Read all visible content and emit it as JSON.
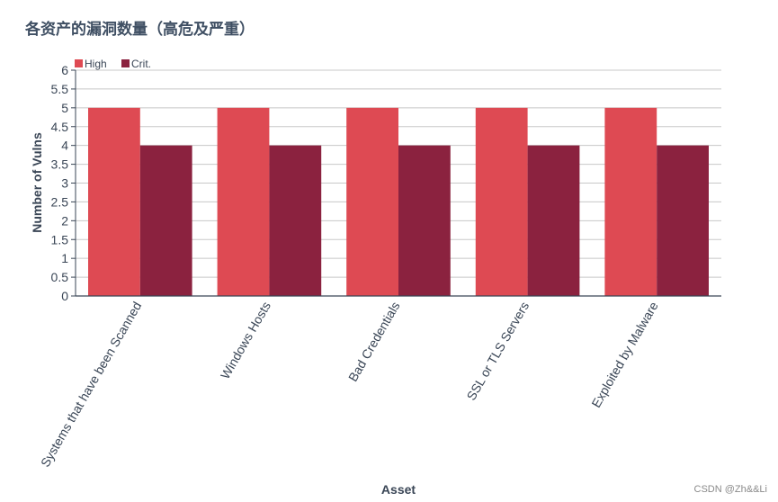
{
  "chart_data": {
    "type": "bar",
    "title": "各资产的漏洞数量（高危及严重）",
    "xlabel": "Asset",
    "ylabel": "Number of Vulns",
    "categories": [
      "Systems that have been Scanned",
      "Windows Hosts",
      "Bad Credentials",
      "SSL or TLS Servers",
      "Exploited by Malware"
    ],
    "series": [
      {
        "name": "High",
        "color": "#de4a53",
        "values": [
          5,
          5,
          5,
          5,
          5
        ]
      },
      {
        "name": "Crit.",
        "color": "#8b223f",
        "values": [
          4,
          4,
          4,
          4,
          4
        ]
      }
    ],
    "ylim": [
      0,
      6
    ],
    "yticks": [
      "0",
      "0.5",
      "1",
      "1.5",
      "2",
      "2.5",
      "3",
      "3.5",
      "4",
      "4.5",
      "5",
      "5.5",
      "6"
    ],
    "grid": true,
    "legend_position": "top-left"
  },
  "watermark": "CSDN @Zh&&Li"
}
